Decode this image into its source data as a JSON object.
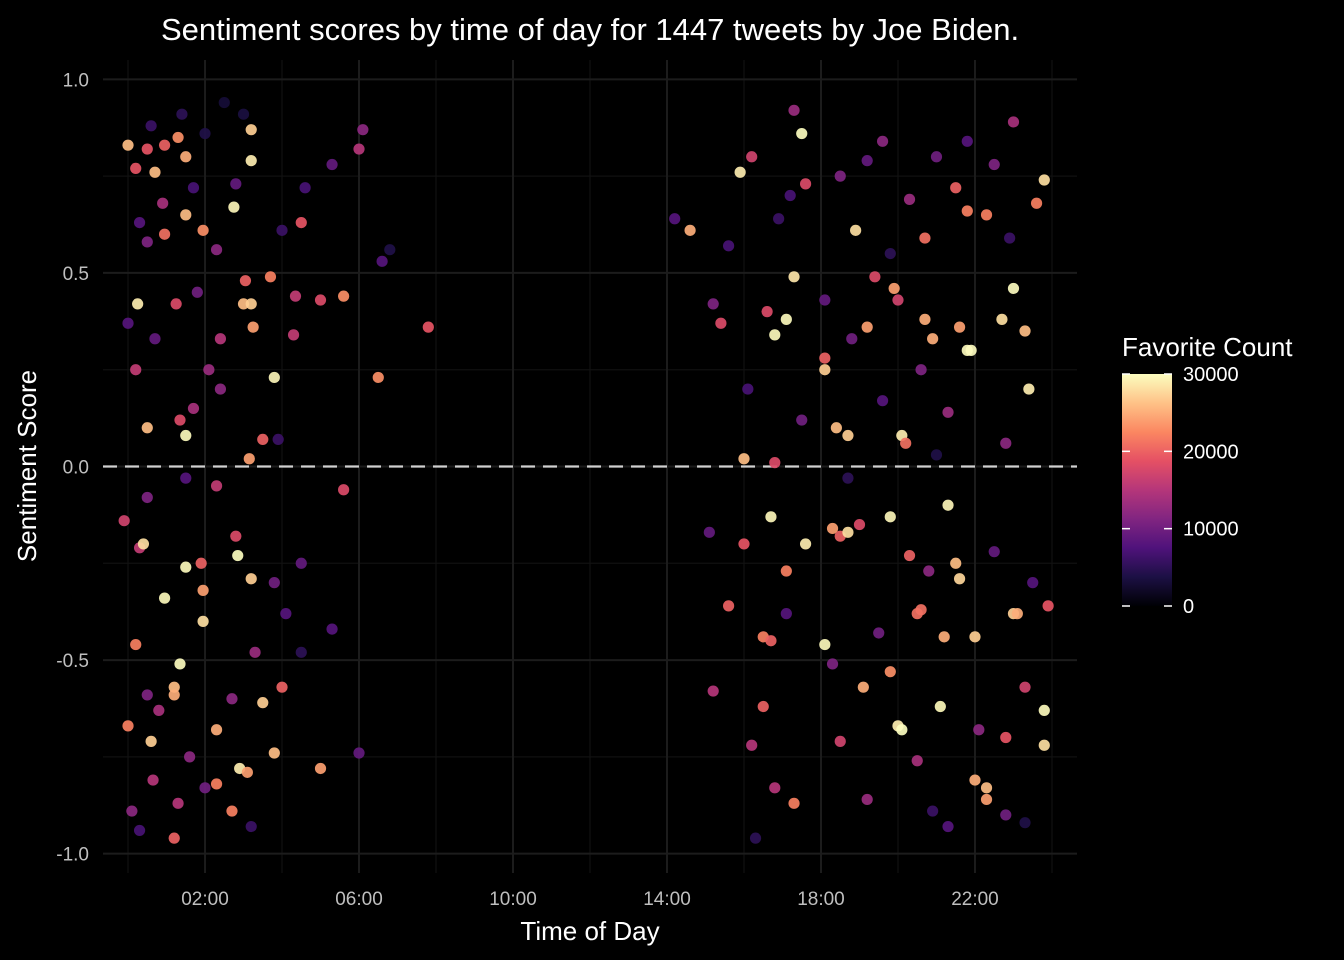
{
  "chart_data": {
    "type": "scatter",
    "title": "Sentiment scores by time of day for 1447 tweets by Joe Biden.",
    "xlabel": "Time of Day",
    "ylabel": "Sentiment Score",
    "x_unit": "hours",
    "xlim": [
      -0.65,
      24.65
    ],
    "ylim": [
      -1.05,
      1.05
    ],
    "x_ticks": [
      {
        "value": 2,
        "label": "02:00"
      },
      {
        "value": 6,
        "label": "06:00"
      },
      {
        "value": 10,
        "label": "10:00"
      },
      {
        "value": 14,
        "label": "14:00"
      },
      {
        "value": 18,
        "label": "18:00"
      },
      {
        "value": 22,
        "label": "22:00"
      }
    ],
    "y_ticks": [
      {
        "value": 1.0,
        "label": "1.0"
      },
      {
        "value": 0.5,
        "label": "0.5"
      },
      {
        "value": 0.0,
        "label": "0.0"
      },
      {
        "value": -0.5,
        "label": "-0.5"
      },
      {
        "value": -1.0,
        "label": "-1.0"
      }
    ],
    "reference_line": {
      "y": 0,
      "style": "dashed",
      "color": "#d0d0d0"
    },
    "grid": true,
    "colorbar": {
      "title": "Favorite Count",
      "scale": "magma",
      "range": [
        0,
        30000
      ],
      "ticks": [
        {
          "value": 30000,
          "label": "30000"
        },
        {
          "value": 20000,
          "label": "20000"
        },
        {
          "value": 10000,
          "label": "10000"
        },
        {
          "value": 0,
          "label": "0"
        }
      ],
      "placement": "right"
    },
    "points": [
      {
        "x": 0.0,
        "y": 0.83,
        "fav": 26000
      },
      {
        "x": 0.2,
        "y": 0.77,
        "fav": 19000
      },
      {
        "x": 0.5,
        "y": 0.82,
        "fav": 19000
      },
      {
        "x": 0.95,
        "y": 0.83,
        "fav": 20000
      },
      {
        "x": 1.3,
        "y": 0.85,
        "fav": 23000
      },
      {
        "x": 1.5,
        "y": 0.8,
        "fav": 25000
      },
      {
        "x": 0.7,
        "y": 0.76,
        "fav": 26000
      },
      {
        "x": 3.2,
        "y": 0.87,
        "fav": 27000
      },
      {
        "x": 3.2,
        "y": 0.79,
        "fav": 29000
      },
      {
        "x": 2.75,
        "y": 0.67,
        "fav": 29500
      },
      {
        "x": 1.5,
        "y": 0.65,
        "fav": 26000
      },
      {
        "x": 1.95,
        "y": 0.61,
        "fav": 23000
      },
      {
        "x": 0.95,
        "y": 0.6,
        "fav": 21000
      },
      {
        "x": 0.25,
        "y": 0.42,
        "fav": 29000
      },
      {
        "x": 1.25,
        "y": 0.42,
        "fav": 18000
      },
      {
        "x": 3.0,
        "y": 0.42,
        "fav": 26000
      },
      {
        "x": 3.2,
        "y": 0.42,
        "fav": 27000
      },
      {
        "x": 3.25,
        "y": 0.36,
        "fav": 24000
      },
      {
        "x": 3.05,
        "y": 0.48,
        "fav": 20000
      },
      {
        "x": 3.7,
        "y": 0.49,
        "fav": 22000
      },
      {
        "x": 3.8,
        "y": 0.23,
        "fav": 29500
      },
      {
        "x": 0.5,
        "y": 0.1,
        "fav": 26000
      },
      {
        "x": 1.5,
        "y": 0.08,
        "fav": 29800
      },
      {
        "x": 3.15,
        "y": 0.02,
        "fav": 24000
      },
      {
        "x": 4.5,
        "y": 0.63,
        "fav": 19000
      },
      {
        "x": 4.35,
        "y": 0.44,
        "fav": 16000
      },
      {
        "x": 5.0,
        "y": 0.43,
        "fav": 18000
      },
      {
        "x": 5.6,
        "y": 0.44,
        "fav": 23000
      },
      {
        "x": 6.5,
        "y": 0.23,
        "fav": 23000
      },
      {
        "x": 7.8,
        "y": 0.36,
        "fav": 19000
      },
      {
        "x": 5.6,
        "y": -0.06,
        "fav": 18000
      },
      {
        "x": 6.0,
        "y": 0.82,
        "fav": 15000
      },
      {
        "x": 6.1,
        "y": 0.87,
        "fav": 12000
      },
      {
        "x": 5.3,
        "y": 0.78,
        "fav": 9000
      },
      {
        "x": 6.6,
        "y": 0.53,
        "fav": 8000
      },
      {
        "x": 6.8,
        "y": 0.56,
        "fav": 4000
      },
      {
        "x": 0.5,
        "y": 0.58,
        "fav": 11000
      },
      {
        "x": 0.3,
        "y": 0.63,
        "fav": 8000
      },
      {
        "x": 0.9,
        "y": 0.68,
        "fav": 14000
      },
      {
        "x": 1.7,
        "y": 0.72,
        "fav": 7000
      },
      {
        "x": 2.3,
        "y": 0.56,
        "fav": 12000
      },
      {
        "x": 1.8,
        "y": 0.45,
        "fav": 10000
      },
      {
        "x": 2.4,
        "y": 0.33,
        "fav": 15000
      },
      {
        "x": 2.1,
        "y": 0.25,
        "fav": 13000
      },
      {
        "x": 0.7,
        "y": 0.33,
        "fav": 9000
      },
      {
        "x": 0.2,
        "y": 0.25,
        "fav": 16000
      },
      {
        "x": 0.0,
        "y": 0.37,
        "fav": 8000
      },
      {
        "x": 1.35,
        "y": 0.12,
        "fav": 18000
      },
      {
        "x": 1.7,
        "y": 0.15,
        "fav": 14000
      },
      {
        "x": 2.4,
        "y": 0.2,
        "fav": 12000
      },
      {
        "x": 4.3,
        "y": 0.34,
        "fav": 16000
      },
      {
        "x": 3.9,
        "y": 0.07,
        "fav": 6000
      },
      {
        "x": 3.5,
        "y": 0.07,
        "fav": 20000
      },
      {
        "x": 2.5,
        "y": 0.94,
        "fav": 3000
      },
      {
        "x": 1.4,
        "y": 0.91,
        "fav": 5000
      },
      {
        "x": 0.6,
        "y": 0.88,
        "fav": 6000
      },
      {
        "x": 2.0,
        "y": 0.86,
        "fav": 4000
      },
      {
        "x": 3.0,
        "y": 0.91,
        "fav": 3500
      },
      {
        "x": 4.6,
        "y": 0.72,
        "fav": 7000
      },
      {
        "x": 4.0,
        "y": 0.61,
        "fav": 6000
      },
      {
        "x": 2.8,
        "y": 0.73,
        "fav": 9000
      },
      {
        "x": 0.3,
        "y": -0.21,
        "fav": 16000
      },
      {
        "x": 0.4,
        "y": -0.2,
        "fav": 28000
      },
      {
        "x": 1.5,
        "y": -0.26,
        "fav": 29800
      },
      {
        "x": 2.85,
        "y": -0.23,
        "fav": 30000
      },
      {
        "x": 3.2,
        "y": -0.29,
        "fav": 27000
      },
      {
        "x": 0.95,
        "y": -0.34,
        "fav": 29700
      },
      {
        "x": 1.35,
        "y": -0.51,
        "fav": 29900
      },
      {
        "x": 1.95,
        "y": -0.4,
        "fav": 28000
      },
      {
        "x": 1.95,
        "y": -0.32,
        "fav": 24000
      },
      {
        "x": 0.2,
        "y": -0.46,
        "fav": 22000
      },
      {
        "x": 1.2,
        "y": -0.57,
        "fav": 26000
      },
      {
        "x": 1.2,
        "y": -0.59,
        "fav": 25000
      },
      {
        "x": 0.0,
        "y": -0.67,
        "fav": 22000
      },
      {
        "x": 0.6,
        "y": -0.71,
        "fav": 27000
      },
      {
        "x": 2.3,
        "y": -0.68,
        "fav": 25000
      },
      {
        "x": 3.8,
        "y": -0.74,
        "fav": 26000
      },
      {
        "x": 2.9,
        "y": -0.78,
        "fav": 29000
      },
      {
        "x": 3.1,
        "y": -0.79,
        "fav": 24000
      },
      {
        "x": 2.3,
        "y": -0.82,
        "fav": 22000
      },
      {
        "x": 2.7,
        "y": -0.89,
        "fav": 22000
      },
      {
        "x": 1.2,
        "y": -0.96,
        "fav": 20000
      },
      {
        "x": 5.0,
        "y": -0.78,
        "fav": 24000
      },
      {
        "x": 4.0,
        "y": -0.57,
        "fav": 20000
      },
      {
        "x": 3.5,
        "y": -0.61,
        "fav": 27000
      },
      {
        "x": 1.9,
        "y": -0.25,
        "fav": 20000
      },
      {
        "x": 2.8,
        "y": -0.18,
        "fav": 18000
      },
      {
        "x": 0.5,
        "y": -0.08,
        "fav": 11000
      },
      {
        "x": 2.3,
        "y": -0.05,
        "fav": 16000
      },
      {
        "x": -0.1,
        "y": -0.14,
        "fav": 17000
      },
      {
        "x": 0.5,
        "y": -0.59,
        "fav": 11000
      },
      {
        "x": 0.8,
        "y": -0.63,
        "fav": 14000
      },
      {
        "x": 1.6,
        "y": -0.75,
        "fav": 12000
      },
      {
        "x": 0.1,
        "y": -0.89,
        "fav": 12000
      },
      {
        "x": 0.65,
        "y": -0.81,
        "fav": 15000
      },
      {
        "x": 1.3,
        "y": -0.87,
        "fav": 15000
      },
      {
        "x": 2.0,
        "y": -0.83,
        "fav": 10000
      },
      {
        "x": 4.5,
        "y": -0.25,
        "fav": 9000
      },
      {
        "x": 4.1,
        "y": -0.38,
        "fav": 8000
      },
      {
        "x": 5.3,
        "y": -0.42,
        "fav": 8000
      },
      {
        "x": 6.0,
        "y": -0.74,
        "fav": 9000
      },
      {
        "x": 3.8,
        "y": -0.3,
        "fav": 10000
      },
      {
        "x": 3.3,
        "y": -0.48,
        "fav": 13000
      },
      {
        "x": 2.7,
        "y": -0.6,
        "fav": 12000
      },
      {
        "x": 0.3,
        "y": -0.94,
        "fav": 7000
      },
      {
        "x": 3.2,
        "y": -0.93,
        "fav": 6000
      },
      {
        "x": 4.5,
        "y": -0.48,
        "fav": 5000
      },
      {
        "x": 1.5,
        "y": -0.03,
        "fav": 8000
      },
      {
        "x": 14.2,
        "y": 0.64,
        "fav": 8000
      },
      {
        "x": 14.6,
        "y": 0.61,
        "fav": 25000
      },
      {
        "x": 15.2,
        "y": 0.42,
        "fav": 11000
      },
      {
        "x": 15.4,
        "y": 0.37,
        "fav": 18000
      },
      {
        "x": 15.9,
        "y": 0.76,
        "fav": 29000
      },
      {
        "x": 16.2,
        "y": 0.8,
        "fav": 17000
      },
      {
        "x": 16.0,
        "y": 0.02,
        "fav": 26000
      },
      {
        "x": 16.6,
        "y": 0.4,
        "fav": 18000
      },
      {
        "x": 16.8,
        "y": 0.01,
        "fav": 18000
      },
      {
        "x": 16.8,
        "y": 0.34,
        "fav": 29800
      },
      {
        "x": 17.1,
        "y": 0.38,
        "fav": 29800
      },
      {
        "x": 17.3,
        "y": 0.49,
        "fav": 28500
      },
      {
        "x": 17.5,
        "y": 0.86,
        "fav": 30000
      },
      {
        "x": 17.3,
        "y": 0.92,
        "fav": 13000
      },
      {
        "x": 18.1,
        "y": 0.28,
        "fav": 20000
      },
      {
        "x": 18.1,
        "y": 0.25,
        "fav": 27000
      },
      {
        "x": 18.4,
        "y": 0.1,
        "fav": 26000
      },
      {
        "x": 18.7,
        "y": 0.08,
        "fav": 27000
      },
      {
        "x": 18.9,
        "y": 0.61,
        "fav": 28000
      },
      {
        "x": 19.2,
        "y": 0.36,
        "fav": 24000
      },
      {
        "x": 19.4,
        "y": 0.49,
        "fav": 18000
      },
      {
        "x": 19.9,
        "y": 0.46,
        "fav": 24000
      },
      {
        "x": 20.0,
        "y": 0.43,
        "fav": 17000
      },
      {
        "x": 20.1,
        "y": 0.08,
        "fav": 29000
      },
      {
        "x": 20.2,
        "y": 0.06,
        "fav": 21000
      },
      {
        "x": 20.7,
        "y": 0.38,
        "fav": 25000
      },
      {
        "x": 20.9,
        "y": 0.33,
        "fav": 25000
      },
      {
        "x": 21.6,
        "y": 0.36,
        "fav": 24000
      },
      {
        "x": 21.8,
        "y": 0.3,
        "fav": 29800
      },
      {
        "x": 21.9,
        "y": 0.3,
        "fav": 29900
      },
      {
        "x": 22.7,
        "y": 0.38,
        "fav": 28000
      },
      {
        "x": 23.0,
        "y": 0.46,
        "fav": 29900
      },
      {
        "x": 23.3,
        "y": 0.35,
        "fav": 26000
      },
      {
        "x": 23.4,
        "y": 0.2,
        "fav": 29000
      },
      {
        "x": 23.6,
        "y": 0.68,
        "fav": 22000
      },
      {
        "x": 23.8,
        "y": 0.74,
        "fav": 28000
      },
      {
        "x": 22.3,
        "y": 0.65,
        "fav": 22000
      },
      {
        "x": 21.8,
        "y": 0.66,
        "fav": 22000
      },
      {
        "x": 21.5,
        "y": 0.72,
        "fav": 20000
      },
      {
        "x": 20.7,
        "y": 0.59,
        "fav": 21000
      },
      {
        "x": 15.6,
        "y": -0.36,
        "fav": 20000
      },
      {
        "x": 16.0,
        "y": -0.2,
        "fav": 19000
      },
      {
        "x": 16.5,
        "y": -0.44,
        "fav": 22000
      },
      {
        "x": 16.7,
        "y": -0.45,
        "fav": 20000
      },
      {
        "x": 16.7,
        "y": -0.13,
        "fav": 29500
      },
      {
        "x": 17.1,
        "y": -0.27,
        "fav": 22000
      },
      {
        "x": 17.3,
        "y": -0.87,
        "fav": 22000
      },
      {
        "x": 17.6,
        "y": -0.2,
        "fav": 29000
      },
      {
        "x": 18.1,
        "y": -0.46,
        "fav": 29700
      },
      {
        "x": 18.3,
        "y": -0.16,
        "fav": 24000
      },
      {
        "x": 18.5,
        "y": -0.18,
        "fav": 20000
      },
      {
        "x": 18.7,
        "y": -0.17,
        "fav": 28000
      },
      {
        "x": 19.0,
        "y": -0.15,
        "fav": 18000
      },
      {
        "x": 19.1,
        "y": -0.57,
        "fav": 25000
      },
      {
        "x": 19.8,
        "y": -0.13,
        "fav": 29500
      },
      {
        "x": 19.8,
        "y": -0.53,
        "fav": 23000
      },
      {
        "x": 20.0,
        "y": -0.67,
        "fav": 29000
      },
      {
        "x": 20.1,
        "y": -0.68,
        "fav": 30000
      },
      {
        "x": 20.3,
        "y": -0.23,
        "fav": 20000
      },
      {
        "x": 20.5,
        "y": -0.38,
        "fav": 21000
      },
      {
        "x": 20.6,
        "y": -0.37,
        "fav": 21000
      },
      {
        "x": 21.1,
        "y": -0.62,
        "fav": 29600
      },
      {
        "x": 21.2,
        "y": -0.44,
        "fav": 25000
      },
      {
        "x": 21.3,
        "y": -0.1,
        "fav": 29500
      },
      {
        "x": 21.5,
        "y": -0.25,
        "fav": 26000
      },
      {
        "x": 21.6,
        "y": -0.29,
        "fav": 27500
      },
      {
        "x": 22.0,
        "y": -0.44,
        "fav": 27000
      },
      {
        "x": 22.0,
        "y": -0.81,
        "fav": 25000
      },
      {
        "x": 22.3,
        "y": -0.83,
        "fav": 26000
      },
      {
        "x": 22.3,
        "y": -0.86,
        "fav": 24000
      },
      {
        "x": 22.8,
        "y": -0.7,
        "fav": 19000
      },
      {
        "x": 23.0,
        "y": -0.38,
        "fav": 27000
      },
      {
        "x": 23.1,
        "y": -0.38,
        "fav": 25000
      },
      {
        "x": 23.3,
        "y": -0.57,
        "fav": 17000
      },
      {
        "x": 23.8,
        "y": -0.63,
        "fav": 29800
      },
      {
        "x": 23.8,
        "y": -0.72,
        "fav": 28000
      },
      {
        "x": 23.9,
        "y": -0.36,
        "fav": 19000
      },
      {
        "x": 15.2,
        "y": -0.58,
        "fav": 15000
      },
      {
        "x": 16.5,
        "y": -0.62,
        "fav": 20000
      },
      {
        "x": 16.2,
        "y": -0.72,
        "fav": 15000
      },
      {
        "x": 16.8,
        "y": -0.83,
        "fav": 15000
      },
      {
        "x": 18.5,
        "y": -0.71,
        "fav": 17000
      },
      {
        "x": 19.2,
        "y": -0.86,
        "fav": 13000
      },
      {
        "x": 20.5,
        "y": -0.76,
        "fav": 14000
      },
      {
        "x": 21.3,
        "y": -0.93,
        "fav": 8000
      },
      {
        "x": 22.1,
        "y": -0.68,
        "fav": 12000
      },
      {
        "x": 22.8,
        "y": -0.9,
        "fav": 10000
      },
      {
        "x": 17.2,
        "y": 0.7,
        "fav": 7000
      },
      {
        "x": 17.6,
        "y": 0.73,
        "fav": 18000
      },
      {
        "x": 18.5,
        "y": 0.75,
        "fav": 11000
      },
      {
        "x": 19.2,
        "y": 0.79,
        "fav": 9000
      },
      {
        "x": 19.6,
        "y": 0.84,
        "fav": 12000
      },
      {
        "x": 20.3,
        "y": 0.69,
        "fav": 13000
      },
      {
        "x": 21.0,
        "y": 0.8,
        "fav": 10000
      },
      {
        "x": 21.8,
        "y": 0.84,
        "fav": 8000
      },
      {
        "x": 22.5,
        "y": 0.78,
        "fav": 11000
      },
      {
        "x": 23.0,
        "y": 0.89,
        "fav": 14000
      },
      {
        "x": 18.1,
        "y": 0.43,
        "fav": 9000
      },
      {
        "x": 18.8,
        "y": 0.33,
        "fav": 10000
      },
      {
        "x": 19.6,
        "y": 0.17,
        "fav": 8000
      },
      {
        "x": 20.6,
        "y": 0.25,
        "fav": 11000
      },
      {
        "x": 21.3,
        "y": 0.14,
        "fav": 13000
      },
      {
        "x": 22.8,
        "y": 0.06,
        "fav": 12000
      },
      {
        "x": 16.1,
        "y": 0.2,
        "fav": 7000
      },
      {
        "x": 17.5,
        "y": 0.12,
        "fav": 10000
      },
      {
        "x": 15.1,
        "y": -0.17,
        "fav": 9000
      },
      {
        "x": 17.1,
        "y": -0.38,
        "fav": 8000
      },
      {
        "x": 18.3,
        "y": -0.51,
        "fav": 11000
      },
      {
        "x": 19.5,
        "y": -0.43,
        "fav": 10000
      },
      {
        "x": 20.8,
        "y": -0.27,
        "fav": 12000
      },
      {
        "x": 22.5,
        "y": -0.22,
        "fav": 9000
      },
      {
        "x": 23.5,
        "y": -0.3,
        "fav": 8000
      },
      {
        "x": 16.3,
        "y": -0.96,
        "fav": 5000
      },
      {
        "x": 20.9,
        "y": -0.89,
        "fav": 6000
      },
      {
        "x": 23.3,
        "y": -0.92,
        "fav": 4000
      },
      {
        "x": 15.6,
        "y": 0.57,
        "fav": 7000
      },
      {
        "x": 16.9,
        "y": 0.64,
        "fav": 6000
      },
      {
        "x": 19.8,
        "y": 0.55,
        "fav": 5000
      },
      {
        "x": 22.9,
        "y": 0.59,
        "fav": 6000
      },
      {
        "x": 18.7,
        "y": -0.03,
        "fav": 5000
      },
      {
        "x": 21.0,
        "y": 0.03,
        "fav": 4000
      }
    ]
  }
}
